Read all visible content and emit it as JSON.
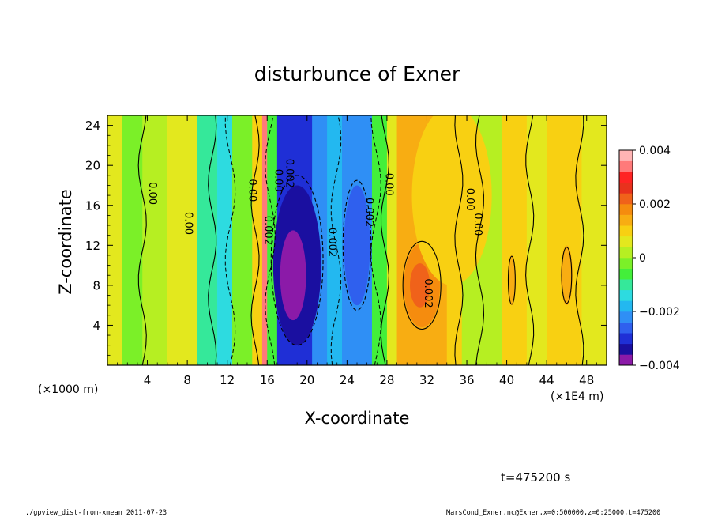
{
  "chart_data": {
    "type": "heatmap",
    "title": "disturbunce of Exner",
    "xlabel": "X-coordinate",
    "ylabel": "Z-coordinate",
    "x_unit_left": "(×1000 m)",
    "x_unit_right": "(×1E4 m)",
    "xlim": [
      0,
      50
    ],
    "ylim": [
      0,
      25
    ],
    "x_ticks": [
      4,
      8,
      12,
      16,
      20,
      24,
      28,
      32,
      36,
      40,
      44,
      48
    ],
    "x_tick_labels": [
      "4",
      "8",
      "12",
      "16",
      "20",
      "24",
      "28",
      "32",
      "36",
      "40",
      "44",
      "48"
    ],
    "y_ticks": [
      4,
      8,
      12,
      16,
      20,
      24
    ],
    "y_tick_labels": [
      "4",
      "8",
      "12",
      "16",
      "20",
      "24"
    ],
    "colorbar": {
      "range": [
        -0.004,
        0.004
      ],
      "tick_labels": [
        "0.004",
        "0.002",
        "0",
        "−0.002",
        "−0.004"
      ],
      "colors": [
        "#8b1aa8",
        "#1a0fa0",
        "#1f2fd6",
        "#2f60ee",
        "#2f8ff5",
        "#23b8f0",
        "#2ddbe0",
        "#35e89a",
        "#43ef3a",
        "#7bf028",
        "#b6ef22",
        "#e3e81e",
        "#f8d012",
        "#f8ad12",
        "#f58c0e",
        "#f0621a",
        "#e8321d",
        "#ff2424",
        "#ff7a7a",
        "#ffb4b4"
      ]
    },
    "bands": [
      {
        "x0": 0,
        "x1": 1.5,
        "value": 0.0004
      },
      {
        "x0": 1.5,
        "x1": 3.5,
        "value": -0.0002
      },
      {
        "x0": 3.5,
        "x1": 6,
        "value": 0.0003
      },
      {
        "x0": 6,
        "x1": 9,
        "value": 0.0007
      },
      {
        "x0": 9,
        "x1": 11,
        "value": -0.0011
      },
      {
        "x0": 11,
        "x1": 12.5,
        "value": -0.0015
      },
      {
        "x0": 12.5,
        "x1": 14.5,
        "value": -0.0004
      },
      {
        "x0": 14.5,
        "x1": 15.5,
        "value": 0.0009
      },
      {
        "x0": 15.5,
        "x1": 16,
        "value": 0.0032
      },
      {
        "x0": 16,
        "x1": 17,
        "value": -0.0006
      },
      {
        "x0": 17,
        "x1": 20.5,
        "value": -0.0031
      },
      {
        "x0": 20.5,
        "x1": 22,
        "value": -0.0022
      },
      {
        "x0": 22,
        "x1": 23.5,
        "value": -0.0017
      },
      {
        "x0": 23.5,
        "x1": 26.5,
        "value": -0.0024
      },
      {
        "x0": 26.5,
        "x1": 28,
        "value": -0.0008
      },
      {
        "x0": 28,
        "x1": 29,
        "value": 0.0006
      },
      {
        "x0": 29,
        "x1": 34,
        "value": 0.0014
      },
      {
        "x0": 34,
        "x1": 35.5,
        "value": 0.0008
      },
      {
        "x0": 35.5,
        "x1": 37.5,
        "value": 0.0002
      },
      {
        "x0": 37.5,
        "x1": 39.5,
        "value": 0.0003
      },
      {
        "x0": 39.5,
        "x1": 42,
        "value": 0.0008
      },
      {
        "x0": 42,
        "x1": 44,
        "value": 0.0004
      },
      {
        "x0": 44,
        "x1": 47.5,
        "value": 0.0009
      },
      {
        "x0": 47.5,
        "x1": 50,
        "value": 0.0005
      }
    ],
    "contour_labels": [
      {
        "text": "0.00",
        "x": 4.2,
        "z": 17.2,
        "rotate": 90
      },
      {
        "text": "0.00",
        "x": 7.8,
        "z": 14.2,
        "rotate": 90
      },
      {
        "text": "0.00",
        "x": 14.2,
        "z": 17.5,
        "rotate": 90
      },
      {
        "text": "0.002",
        "x": 15.8,
        "z": 13.5,
        "rotate": 90
      },
      {
        "text": "0.00",
        "x": 16.8,
        "z": 18.5,
        "rotate": 90
      },
      {
        "text": "0.002",
        "x": 17.9,
        "z": 19.2,
        "rotate": 90
      },
      {
        "text": "0.002",
        "x": 22.2,
        "z": 12.3,
        "rotate": 90
      },
      {
        "text": "0.002",
        "x": 25.9,
        "z": 15.3,
        "rotate": 90
      },
      {
        "text": "0.00",
        "x": 27.9,
        "z": 18.1,
        "rotate": 90
      },
      {
        "text": "0.002",
        "x": 31.8,
        "z": 7.2,
        "rotate": 90
      },
      {
        "text": "0.00",
        "x": 36.0,
        "z": 16.6,
        "rotate": 90
      },
      {
        "text": "0.00",
        "x": 36.8,
        "z": 14.1,
        "rotate": 90
      }
    ],
    "time_label": "t=475200 s",
    "footer_left": "./gpview_dist-from-xmean  2011-07-23",
    "footer_right": "MarsCond_Exner.nc@Exner,x=0:500000,z=0:25000,t=475200"
  }
}
